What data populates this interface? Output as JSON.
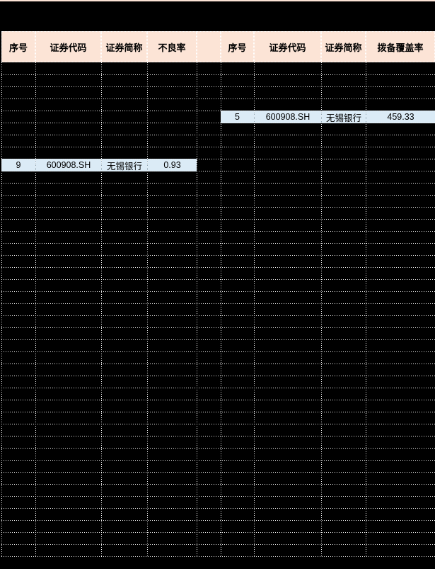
{
  "colors": {
    "header_bg": "#FCE4D6",
    "highlight_bg": "#DBEBF6",
    "sheet_bg": "#000000",
    "gridline": "#F0F0F0",
    "text": "#000000"
  },
  "left_table": {
    "headers": [
      "序号",
      "证券代码",
      "证券简称",
      "不良率"
    ],
    "highlight": {
      "seq": "9",
      "code": "600908.SH",
      "name": "无锡银行",
      "value": "0.93"
    }
  },
  "right_table": {
    "headers": [
      "序号",
      "证券代码",
      "证券简称",
      "拨备覆盖率"
    ],
    "highlight": {
      "seq": "5",
      "code": "600908.SH",
      "name": "无锡银行",
      "value": "459.33"
    }
  }
}
